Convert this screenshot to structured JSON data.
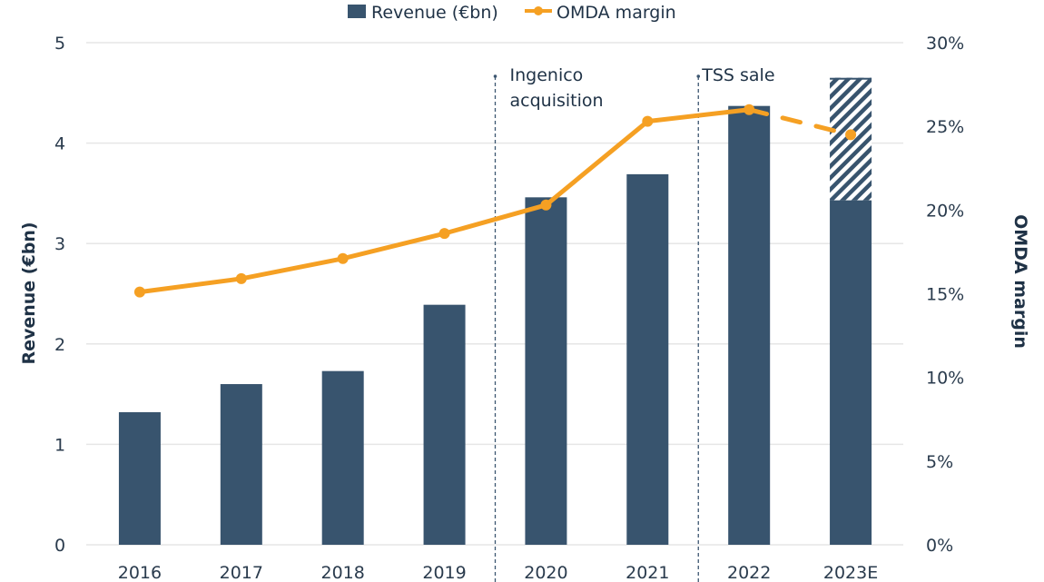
{
  "chart_data": {
    "type": "bar",
    "title": "",
    "categories": [
      "2016",
      "2017",
      "2018",
      "2019",
      "2020",
      "2021",
      "2022",
      "2023E"
    ],
    "series": [
      {
        "name": "Revenue (€bn)",
        "kind": "bar",
        "axis": "left",
        "color": "#38546e",
        "values": [
          1.32,
          1.6,
          1.73,
          2.39,
          3.46,
          3.69,
          4.37,
          3.43
        ]
      },
      {
        "name": "Revenue (€bn) – estimated portion",
        "kind": "bar-hatched",
        "axis": "left",
        "color": "#38546e",
        "stacked_on": "Revenue (€bn)",
        "values": [
          0,
          0,
          0,
          0,
          0,
          0,
          0,
          1.22
        ],
        "in_legend": false
      },
      {
        "name": "OMDA margin",
        "kind": "line",
        "axis": "right",
        "color": "#f5a023",
        "unit": "%",
        "values": [
          15.1,
          15.9,
          17.1,
          18.6,
          20.3,
          25.3,
          26.0,
          24.5
        ],
        "dashed_from_index": 6
      }
    ],
    "left_axis": {
      "label": "Revenue (€bn)",
      "ylim": [
        0,
        5
      ],
      "ticks": [
        "0",
        "1",
        "2",
        "3",
        "4",
        "5"
      ]
    },
    "right_axis": {
      "label": "OMDA margin",
      "ylim": [
        0,
        30
      ],
      "ticks": [
        "0%",
        "5%",
        "10%",
        "15%",
        "20%",
        "25%",
        "30%"
      ]
    },
    "grid": true,
    "legend": {
      "placement": "top-center",
      "entries": [
        "Revenue (€bn)",
        "OMDA margin"
      ]
    },
    "annotations": [
      {
        "text_lines": [
          "Ingenico",
          "acquisition"
        ],
        "between": [
          "2019",
          "2020"
        ]
      },
      {
        "text_lines": [
          "TSS sale"
        ],
        "between": [
          "2021",
          "2022"
        ]
      }
    ]
  },
  "colors": {
    "bar": "#38546e",
    "line": "#f5a023",
    "grid": "#e6e6e6",
    "text": "#1f3246"
  }
}
